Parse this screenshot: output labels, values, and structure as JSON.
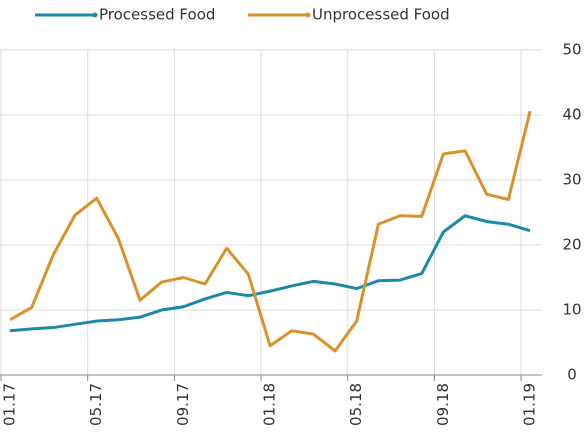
{
  "chart_data": {
    "type": "line",
    "categories": [
      "01.17",
      null,
      null,
      null,
      "05.17",
      null,
      null,
      null,
      "09.17",
      null,
      null,
      null,
      "01.18",
      null,
      null,
      null,
      "05.18",
      null,
      null,
      null,
      "09.18",
      null,
      null,
      null,
      "01.19"
    ],
    "series": [
      {
        "name": "Processed Food",
        "color": "#1b8aa5",
        "values": [
          6.8,
          7.1,
          7.3,
          7.8,
          8.3,
          8.5,
          8.9,
          10,
          10.5,
          11.7,
          12.7,
          12.2,
          12.9,
          13.7,
          14.4,
          14,
          13.3,
          14.5,
          14.6,
          15.6,
          22,
          24.5,
          23.6,
          23.2,
          22.2
        ]
      },
      {
        "name": "Unprocessed Food",
        "color": "#d9922b",
        "values": [
          8.5,
          10.4,
          18.5,
          24.6,
          27.2,
          21,
          11.5,
          14.3,
          15,
          14,
          19.5,
          15.5,
          4.5,
          6.8,
          6.3,
          3.7,
          8.3,
          23.2,
          24.5,
          24.4,
          34,
          34.5,
          27.8,
          27,
          40.6
        ]
      }
    ],
    "ylim": [
      0,
      50
    ],
    "yticks": [
      0,
      10,
      20,
      30,
      40,
      50
    ],
    "grid": true
  }
}
